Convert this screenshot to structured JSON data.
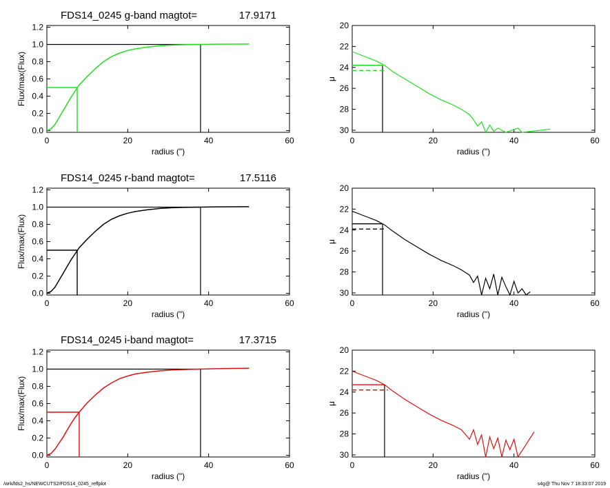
{
  "footer": {
    "left": "/wrk/fds2_hs/NEWCUTS2/FDS14_0245_reffplot",
    "right": "s4g@  Thu Nov  7 18:33:07 2019"
  },
  "chart_data": [
    {
      "type": "line",
      "panel": "g-band curve of growth",
      "title_left": "FDS14_0245 g-band  magtot=",
      "title_value": "17.9171",
      "xlabel": "radius (\")",
      "ylabel": "Flux/max(Flux)",
      "xlim": [
        0,
        60
      ],
      "ylim": [
        -0.02,
        1.22
      ],
      "xticks": [
        0,
        20,
        40,
        60
      ],
      "yticks": [
        0.0,
        0.2,
        0.4,
        0.6,
        0.8,
        1.0,
        1.2
      ],
      "color": "#22dd22",
      "r_eff": 7.5,
      "r_total": 38.0,
      "curve_x": [
        0,
        1,
        2,
        3,
        4,
        5,
        6,
        7,
        8,
        10,
        12,
        14,
        16,
        18,
        20,
        22,
        25,
        28,
        31,
        34,
        38,
        42,
        46,
        50
      ],
      "curve_y": [
        0.0,
        0.02,
        0.07,
        0.15,
        0.23,
        0.31,
        0.39,
        0.46,
        0.53,
        0.63,
        0.72,
        0.8,
        0.86,
        0.9,
        0.93,
        0.95,
        0.97,
        0.985,
        0.993,
        0.997,
        1.0,
        1.003,
        1.004,
        1.005
      ]
    },
    {
      "type": "line",
      "panel": "g-band surface brightness profile",
      "xlabel": "radius (\")",
      "ylabel": "μ",
      "xlim": [
        0,
        60
      ],
      "ylim": [
        30.2,
        20
      ],
      "xticks": [
        0,
        20,
        40,
        60
      ],
      "yticks": [
        20,
        22,
        24,
        26,
        28,
        30
      ],
      "color": "#22dd22",
      "r_eff": 7.5,
      "mu_eff": 23.8,
      "mean_mu_eff": 24.3,
      "profile_x": [
        0,
        2,
        4,
        6,
        8,
        10,
        13,
        16,
        19,
        22,
        25,
        27,
        29,
        30,
        31,
        32,
        33,
        34,
        35,
        36,
        38,
        41,
        42,
        49
      ],
      "profile_y": [
        22.5,
        22.8,
        23.1,
        23.4,
        23.8,
        24.4,
        25.1,
        25.8,
        26.5,
        27.1,
        27.6,
        28.0,
        28.5,
        29.0,
        29.6,
        29.2,
        30.2,
        29.5,
        30.1,
        29.8,
        30.2,
        29.8,
        30.2,
        29.9
      ]
    },
    {
      "type": "line",
      "panel": "r-band curve of growth",
      "title_left": "FDS14_0245 r-band  magtot=",
      "title_value": "17.5116",
      "xlabel": "radius (\")",
      "ylabel": "Flux/max(Flux)",
      "xlim": [
        0,
        60
      ],
      "ylim": [
        -0.02,
        1.22
      ],
      "xticks": [
        0,
        20,
        40,
        60
      ],
      "yticks": [
        0.0,
        0.2,
        0.4,
        0.6,
        0.8,
        1.0,
        1.2
      ],
      "color": "#000000",
      "r_eff": 7.5,
      "r_total": 38.0,
      "curve_x": [
        0,
        1,
        2,
        3,
        4,
        5,
        6,
        7,
        8,
        10,
        12,
        14,
        16,
        18,
        20,
        22,
        25,
        28,
        31,
        34,
        38,
        42,
        46,
        50
      ],
      "curve_y": [
        0.0,
        0.02,
        0.07,
        0.15,
        0.23,
        0.31,
        0.39,
        0.46,
        0.53,
        0.63,
        0.72,
        0.8,
        0.86,
        0.9,
        0.93,
        0.95,
        0.97,
        0.985,
        0.993,
        0.997,
        1.0,
        1.003,
        1.004,
        1.005
      ]
    },
    {
      "type": "line",
      "panel": "r-band surface brightness profile",
      "xlabel": "radius (\")",
      "ylabel": "μ",
      "xlim": [
        0,
        60
      ],
      "ylim": [
        30.2,
        20
      ],
      "xticks": [
        0,
        20,
        40,
        60
      ],
      "yticks": [
        20,
        22,
        24,
        26,
        28,
        30
      ],
      "color": "#000000",
      "r_eff": 7.5,
      "mu_eff": 23.4,
      "mean_mu_eff": 23.9,
      "profile_x": [
        0,
        2,
        4,
        6,
        8,
        10,
        13,
        16,
        19,
        22,
        25,
        27,
        29,
        30,
        31,
        32,
        33,
        34,
        35,
        36,
        37,
        38,
        39,
        40,
        41,
        42,
        43,
        44
      ],
      "profile_y": [
        22.2,
        22.5,
        22.8,
        23.1,
        23.5,
        24.1,
        24.9,
        25.6,
        26.3,
        26.9,
        27.4,
        27.8,
        28.3,
        29.0,
        28.4,
        30.2,
        28.6,
        29.6,
        28.2,
        30.2,
        28.5,
        29.4,
        30.2,
        28.9,
        30.0,
        29.6,
        30.2,
        29.9
      ]
    },
    {
      "type": "line",
      "panel": "i-band curve of growth",
      "title_left": "FDS14_0245 i-band  magtot=",
      "title_value": "17.3715",
      "xlabel": "radius (\")",
      "ylabel": "Flux/max(Flux)",
      "xlim": [
        0,
        60
      ],
      "ylim": [
        -0.02,
        1.22
      ],
      "xticks": [
        0,
        20,
        40,
        60
      ],
      "yticks": [
        0.0,
        0.2,
        0.4,
        0.6,
        0.8,
        1.0,
        1.2
      ],
      "color": "#dd1111",
      "r_eff": 8.0,
      "r_total": 38.0,
      "curve_x": [
        0,
        1,
        2,
        3,
        4,
        5,
        6,
        7,
        8,
        10,
        12,
        14,
        16,
        18,
        20,
        22,
        25,
        28,
        31,
        34,
        38,
        42,
        46,
        50
      ],
      "curve_y": [
        0.0,
        0.02,
        0.07,
        0.14,
        0.21,
        0.29,
        0.37,
        0.44,
        0.5,
        0.61,
        0.7,
        0.78,
        0.84,
        0.89,
        0.92,
        0.945,
        0.965,
        0.98,
        0.99,
        0.995,
        1.0,
        1.005,
        1.008,
        1.01
      ]
    },
    {
      "type": "line",
      "panel": "i-band surface brightness profile",
      "xlabel": "radius (\")",
      "ylabel": "μ",
      "xlim": [
        0,
        60
      ],
      "ylim": [
        30.2,
        20
      ],
      "xticks": [
        0,
        20,
        40,
        60
      ],
      "yticks": [
        20,
        22,
        24,
        26,
        28,
        30
      ],
      "color": "#dd1111",
      "r_eff": 8.0,
      "mu_eff": 23.3,
      "mean_mu_eff": 23.8,
      "profile_x": [
        0,
        2,
        4,
        6,
        8,
        10,
        13,
        16,
        19,
        22,
        25,
        27,
        29,
        30,
        31,
        32,
        33,
        34,
        35,
        36,
        37,
        38,
        39,
        40,
        41,
        45
      ],
      "profile_y": [
        22.0,
        22.3,
        22.6,
        22.9,
        23.3,
        23.9,
        24.7,
        25.4,
        26.1,
        26.7,
        27.2,
        27.6,
        28.5,
        27.6,
        29.0,
        28.1,
        30.2,
        28.3,
        29.4,
        28.4,
        30.2,
        28.6,
        29.5,
        28.5,
        30.2,
        27.8
      ]
    }
  ]
}
